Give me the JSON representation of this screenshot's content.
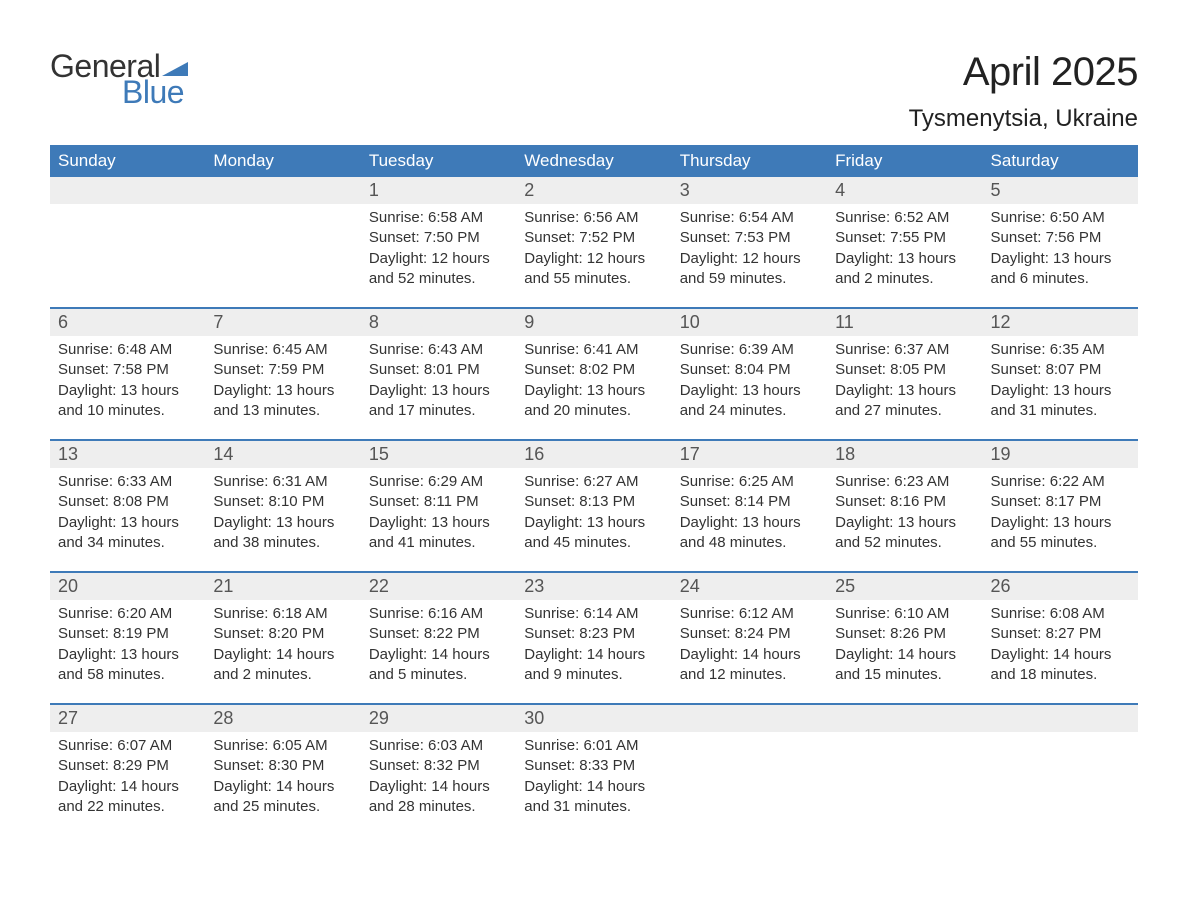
{
  "logo": {
    "text_general": "General",
    "text_blue": "Blue",
    "flag_color": "#3e7ab8"
  },
  "title": "April 2025",
  "location": "Tysmenytsia, Ukraine",
  "colors": {
    "header_bg": "#3e7ab8",
    "header_text": "#ffffff",
    "daynum_bg": "#eeeeee",
    "daynum_text": "#555555",
    "body_text": "#333333",
    "week_border": "#3e7ab8",
    "page_bg": "#ffffff"
  },
  "typography": {
    "title_fontsize": 40,
    "location_fontsize": 24,
    "weekday_fontsize": 17,
    "daynum_fontsize": 18,
    "body_fontsize": 15,
    "logo_fontsize": 32
  },
  "weekdays": [
    "Sunday",
    "Monday",
    "Tuesday",
    "Wednesday",
    "Thursday",
    "Friday",
    "Saturday"
  ],
  "weeks": [
    [
      null,
      null,
      {
        "n": "1",
        "sunrise": "6:58 AM",
        "sunset": "7:50 PM",
        "daylight": "12 hours and 52 minutes."
      },
      {
        "n": "2",
        "sunrise": "6:56 AM",
        "sunset": "7:52 PM",
        "daylight": "12 hours and 55 minutes."
      },
      {
        "n": "3",
        "sunrise": "6:54 AM",
        "sunset": "7:53 PM",
        "daylight": "12 hours and 59 minutes."
      },
      {
        "n": "4",
        "sunrise": "6:52 AM",
        "sunset": "7:55 PM",
        "daylight": "13 hours and 2 minutes."
      },
      {
        "n": "5",
        "sunrise": "6:50 AM",
        "sunset": "7:56 PM",
        "daylight": "13 hours and 6 minutes."
      }
    ],
    [
      {
        "n": "6",
        "sunrise": "6:48 AM",
        "sunset": "7:58 PM",
        "daylight": "13 hours and 10 minutes."
      },
      {
        "n": "7",
        "sunrise": "6:45 AM",
        "sunset": "7:59 PM",
        "daylight": "13 hours and 13 minutes."
      },
      {
        "n": "8",
        "sunrise": "6:43 AM",
        "sunset": "8:01 PM",
        "daylight": "13 hours and 17 minutes."
      },
      {
        "n": "9",
        "sunrise": "6:41 AM",
        "sunset": "8:02 PM",
        "daylight": "13 hours and 20 minutes."
      },
      {
        "n": "10",
        "sunrise": "6:39 AM",
        "sunset": "8:04 PM",
        "daylight": "13 hours and 24 minutes."
      },
      {
        "n": "11",
        "sunrise": "6:37 AM",
        "sunset": "8:05 PM",
        "daylight": "13 hours and 27 minutes."
      },
      {
        "n": "12",
        "sunrise": "6:35 AM",
        "sunset": "8:07 PM",
        "daylight": "13 hours and 31 minutes."
      }
    ],
    [
      {
        "n": "13",
        "sunrise": "6:33 AM",
        "sunset": "8:08 PM",
        "daylight": "13 hours and 34 minutes."
      },
      {
        "n": "14",
        "sunrise": "6:31 AM",
        "sunset": "8:10 PM",
        "daylight": "13 hours and 38 minutes."
      },
      {
        "n": "15",
        "sunrise": "6:29 AM",
        "sunset": "8:11 PM",
        "daylight": "13 hours and 41 minutes."
      },
      {
        "n": "16",
        "sunrise": "6:27 AM",
        "sunset": "8:13 PM",
        "daylight": "13 hours and 45 minutes."
      },
      {
        "n": "17",
        "sunrise": "6:25 AM",
        "sunset": "8:14 PM",
        "daylight": "13 hours and 48 minutes."
      },
      {
        "n": "18",
        "sunrise": "6:23 AM",
        "sunset": "8:16 PM",
        "daylight": "13 hours and 52 minutes."
      },
      {
        "n": "19",
        "sunrise": "6:22 AM",
        "sunset": "8:17 PM",
        "daylight": "13 hours and 55 minutes."
      }
    ],
    [
      {
        "n": "20",
        "sunrise": "6:20 AM",
        "sunset": "8:19 PM",
        "daylight": "13 hours and 58 minutes."
      },
      {
        "n": "21",
        "sunrise": "6:18 AM",
        "sunset": "8:20 PM",
        "daylight": "14 hours and 2 minutes."
      },
      {
        "n": "22",
        "sunrise": "6:16 AM",
        "sunset": "8:22 PM",
        "daylight": "14 hours and 5 minutes."
      },
      {
        "n": "23",
        "sunrise": "6:14 AM",
        "sunset": "8:23 PM",
        "daylight": "14 hours and 9 minutes."
      },
      {
        "n": "24",
        "sunrise": "6:12 AM",
        "sunset": "8:24 PM",
        "daylight": "14 hours and 12 minutes."
      },
      {
        "n": "25",
        "sunrise": "6:10 AM",
        "sunset": "8:26 PM",
        "daylight": "14 hours and 15 minutes."
      },
      {
        "n": "26",
        "sunrise": "6:08 AM",
        "sunset": "8:27 PM",
        "daylight": "14 hours and 18 minutes."
      }
    ],
    [
      {
        "n": "27",
        "sunrise": "6:07 AM",
        "sunset": "8:29 PM",
        "daylight": "14 hours and 22 minutes."
      },
      {
        "n": "28",
        "sunrise": "6:05 AM",
        "sunset": "8:30 PM",
        "daylight": "14 hours and 25 minutes."
      },
      {
        "n": "29",
        "sunrise": "6:03 AM",
        "sunset": "8:32 PM",
        "daylight": "14 hours and 28 minutes."
      },
      {
        "n": "30",
        "sunrise": "6:01 AM",
        "sunset": "8:33 PM",
        "daylight": "14 hours and 31 minutes."
      },
      null,
      null,
      null
    ]
  ],
  "labels": {
    "sunrise": "Sunrise:",
    "sunset": "Sunset:",
    "daylight": "Daylight:"
  }
}
